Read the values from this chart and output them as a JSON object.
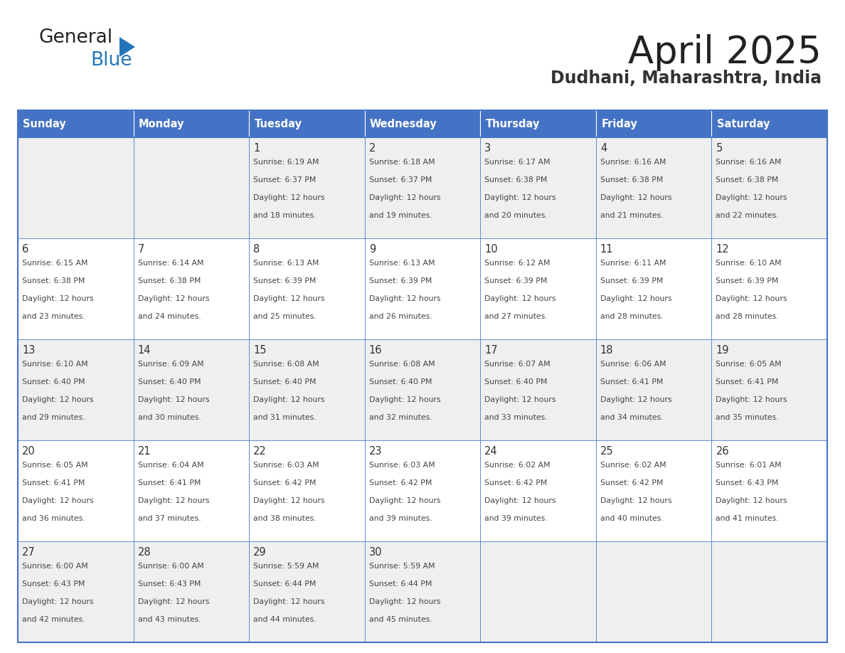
{
  "title": "April 2025",
  "subtitle": "Dudhani, Maharashtra, India",
  "header_bg_color": "#4472C4",
  "header_text_color": "#FFFFFF",
  "cell_bg_even": "#EFEFEF",
  "cell_bg_odd": "#FFFFFF",
  "day_headers": [
    "Sunday",
    "Monday",
    "Tuesday",
    "Wednesday",
    "Thursday",
    "Friday",
    "Saturday"
  ],
  "weeks": [
    [
      {
        "date": "",
        "sunrise": "",
        "sunset": "",
        "daylight_h": "",
        "daylight_m": ""
      },
      {
        "date": "",
        "sunrise": "",
        "sunset": "",
        "daylight_h": "",
        "daylight_m": ""
      },
      {
        "date": "1",
        "sunrise": "6:19 AM",
        "sunset": "6:37 PM",
        "daylight_h": "12 hours",
        "daylight_m": "18 minutes."
      },
      {
        "date": "2",
        "sunrise": "6:18 AM",
        "sunset": "6:37 PM",
        "daylight_h": "12 hours",
        "daylight_m": "19 minutes."
      },
      {
        "date": "3",
        "sunrise": "6:17 AM",
        "sunset": "6:38 PM",
        "daylight_h": "12 hours",
        "daylight_m": "20 minutes."
      },
      {
        "date": "4",
        "sunrise": "6:16 AM",
        "sunset": "6:38 PM",
        "daylight_h": "12 hours",
        "daylight_m": "21 minutes."
      },
      {
        "date": "5",
        "sunrise": "6:16 AM",
        "sunset": "6:38 PM",
        "daylight_h": "12 hours",
        "daylight_m": "22 minutes."
      }
    ],
    [
      {
        "date": "6",
        "sunrise": "6:15 AM",
        "sunset": "6:38 PM",
        "daylight_h": "12 hours",
        "daylight_m": "23 minutes."
      },
      {
        "date": "7",
        "sunrise": "6:14 AM",
        "sunset": "6:38 PM",
        "daylight_h": "12 hours",
        "daylight_m": "24 minutes."
      },
      {
        "date": "8",
        "sunrise": "6:13 AM",
        "sunset": "6:39 PM",
        "daylight_h": "12 hours",
        "daylight_m": "25 minutes."
      },
      {
        "date": "9",
        "sunrise": "6:13 AM",
        "sunset": "6:39 PM",
        "daylight_h": "12 hours",
        "daylight_m": "26 minutes."
      },
      {
        "date": "10",
        "sunrise": "6:12 AM",
        "sunset": "6:39 PM",
        "daylight_h": "12 hours",
        "daylight_m": "27 minutes."
      },
      {
        "date": "11",
        "sunrise": "6:11 AM",
        "sunset": "6:39 PM",
        "daylight_h": "12 hours",
        "daylight_m": "28 minutes."
      },
      {
        "date": "12",
        "sunrise": "6:10 AM",
        "sunset": "6:39 PM",
        "daylight_h": "12 hours",
        "daylight_m": "28 minutes."
      }
    ],
    [
      {
        "date": "13",
        "sunrise": "6:10 AM",
        "sunset": "6:40 PM",
        "daylight_h": "12 hours",
        "daylight_m": "29 minutes."
      },
      {
        "date": "14",
        "sunrise": "6:09 AM",
        "sunset": "6:40 PM",
        "daylight_h": "12 hours",
        "daylight_m": "30 minutes."
      },
      {
        "date": "15",
        "sunrise": "6:08 AM",
        "sunset": "6:40 PM",
        "daylight_h": "12 hours",
        "daylight_m": "31 minutes."
      },
      {
        "date": "16",
        "sunrise": "6:08 AM",
        "sunset": "6:40 PM",
        "daylight_h": "12 hours",
        "daylight_m": "32 minutes."
      },
      {
        "date": "17",
        "sunrise": "6:07 AM",
        "sunset": "6:40 PM",
        "daylight_h": "12 hours",
        "daylight_m": "33 minutes."
      },
      {
        "date": "18",
        "sunrise": "6:06 AM",
        "sunset": "6:41 PM",
        "daylight_h": "12 hours",
        "daylight_m": "34 minutes."
      },
      {
        "date": "19",
        "sunrise": "6:05 AM",
        "sunset": "6:41 PM",
        "daylight_h": "12 hours",
        "daylight_m": "35 minutes."
      }
    ],
    [
      {
        "date": "20",
        "sunrise": "6:05 AM",
        "sunset": "6:41 PM",
        "daylight_h": "12 hours",
        "daylight_m": "36 minutes."
      },
      {
        "date": "21",
        "sunrise": "6:04 AM",
        "sunset": "6:41 PM",
        "daylight_h": "12 hours",
        "daylight_m": "37 minutes."
      },
      {
        "date": "22",
        "sunrise": "6:03 AM",
        "sunset": "6:42 PM",
        "daylight_h": "12 hours",
        "daylight_m": "38 minutes."
      },
      {
        "date": "23",
        "sunrise": "6:03 AM",
        "sunset": "6:42 PM",
        "daylight_h": "12 hours",
        "daylight_m": "39 minutes."
      },
      {
        "date": "24",
        "sunrise": "6:02 AM",
        "sunset": "6:42 PM",
        "daylight_h": "12 hours",
        "daylight_m": "39 minutes."
      },
      {
        "date": "25",
        "sunrise": "6:02 AM",
        "sunset": "6:42 PM",
        "daylight_h": "12 hours",
        "daylight_m": "40 minutes."
      },
      {
        "date": "26",
        "sunrise": "6:01 AM",
        "sunset": "6:43 PM",
        "daylight_h": "12 hours",
        "daylight_m": "41 minutes."
      }
    ],
    [
      {
        "date": "27",
        "sunrise": "6:00 AM",
        "sunset": "6:43 PM",
        "daylight_h": "12 hours",
        "daylight_m": "42 minutes."
      },
      {
        "date": "28",
        "sunrise": "6:00 AM",
        "sunset": "6:43 PM",
        "daylight_h": "12 hours",
        "daylight_m": "43 minutes."
      },
      {
        "date": "29",
        "sunrise": "5:59 AM",
        "sunset": "6:44 PM",
        "daylight_h": "12 hours",
        "daylight_m": "44 minutes."
      },
      {
        "date": "30",
        "sunrise": "5:59 AM",
        "sunset": "6:44 PM",
        "daylight_h": "12 hours",
        "daylight_m": "45 minutes."
      },
      {
        "date": "",
        "sunrise": "",
        "sunset": "",
        "daylight_h": "",
        "daylight_m": ""
      },
      {
        "date": "",
        "sunrise": "",
        "sunset": "",
        "daylight_h": "",
        "daylight_m": ""
      },
      {
        "date": "",
        "sunrise": "",
        "sunset": "",
        "daylight_h": "",
        "daylight_m": ""
      }
    ]
  ],
  "border_color": "#4472C4",
  "text_color": "#444444",
  "date_color": "#333333",
  "title_color": "#222222",
  "subtitle_color": "#333333",
  "logo_general_color": "#222222",
  "logo_blue_color": "#2475B8",
  "logo_triangle_color": "#2475B8"
}
